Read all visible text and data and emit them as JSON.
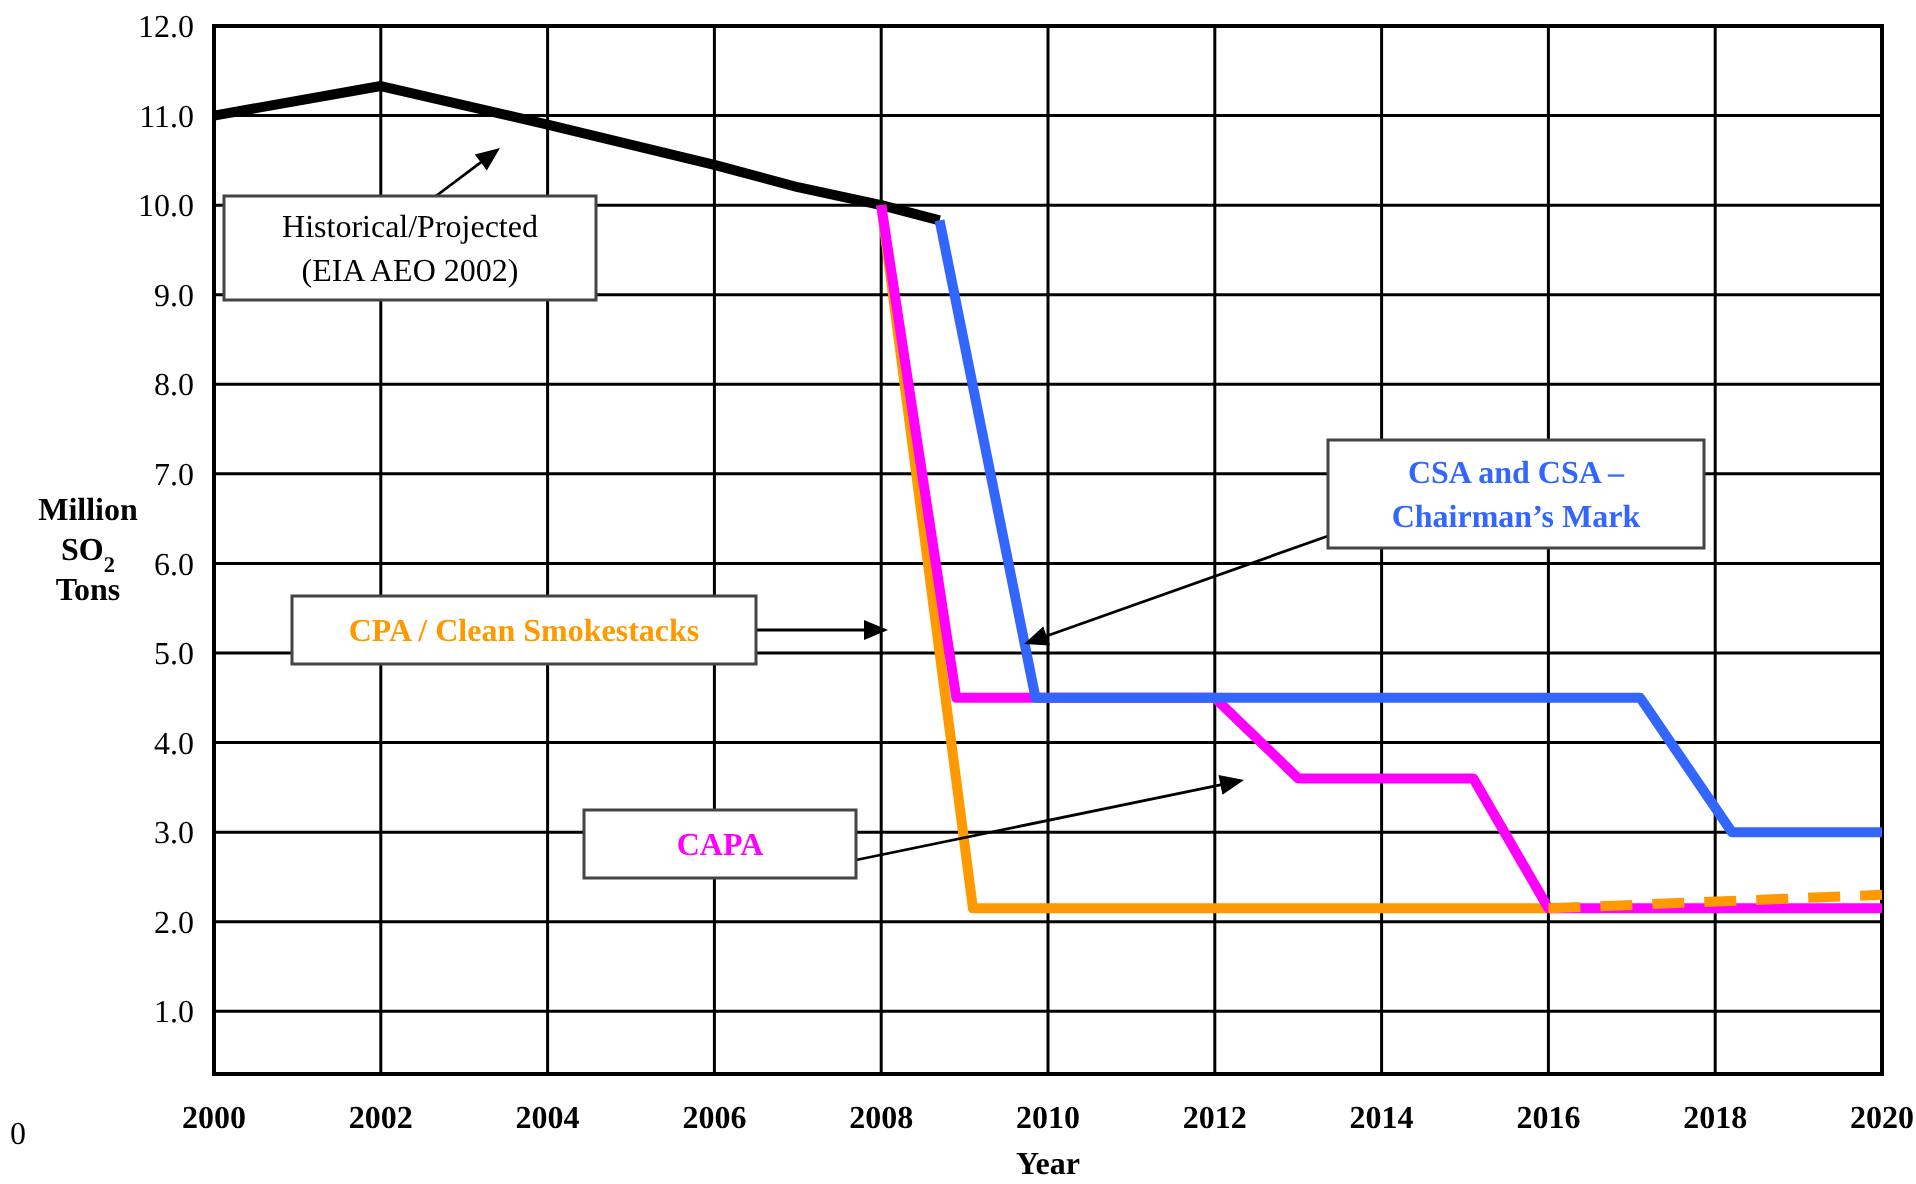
{
  "chart_data": {
    "type": "line",
    "xlabel": "Year",
    "ylabel": "Million SO$_{2}$ Tons",
    "xlim": [
      2000,
      2020
    ],
    "ylim": [
      0.3,
      12
    ],
    "xticks": [
      2000,
      2002,
      2004,
      2006,
      2008,
      2010,
      2012,
      2014,
      2016,
      2018,
      2020
    ],
    "yticks": [
      {
        "value": 1,
        "label": "1.0"
      },
      {
        "value": 2,
        "label": "2.0"
      },
      {
        "value": 3,
        "label": "3.0"
      },
      {
        "value": 4,
        "label": "4.0"
      },
      {
        "value": 5,
        "label": "5.0"
      },
      {
        "value": 6,
        "label": "6.0"
      },
      {
        "value": 7,
        "label": "7.0"
      },
      {
        "value": 8,
        "label": "8.0"
      },
      {
        "value": 9,
        "label": "9.0"
      },
      {
        "value": 10,
        "label": "10.0"
      },
      {
        "value": 11,
        "label": "11.0"
      },
      {
        "value": 12,
        "label": "12.0"
      }
    ],
    "grid": true,
    "marker": "none",
    "annotations": [
      "Historical/Projected\n(EIA AEO 2002)",
      "CPA / Clean Smokestacks",
      "CAPA",
      "CSA and CSA –\nChairman’s Mark",
      "0"
    ],
    "series": [
      {
        "color": "#000000",
        "x": [
          2000,
          2002,
          2004,
          2006,
          2007,
          2008,
          2008.7
        ],
        "values": [
          11.0,
          11.33,
          10.9,
          10.45,
          10.2,
          10.0,
          9.83
        ]
      },
      {
        "color": "#ff9900",
        "x": [
          2008,
          2009.1,
          2016
        ],
        "values": [
          10.0,
          2.15,
          2.15
        ]
      },
      {
        "color": "#ff00ff",
        "x": [
          2008,
          2008.9,
          2012,
          2013,
          2015.1,
          2016,
          2020
        ],
        "values": [
          10.0,
          4.5,
          4.5,
          3.6,
          3.6,
          2.15,
          2.15
        ]
      },
      {
        "color": "#3366ff",
        "x": [
          2008.7,
          2009.85,
          2017.1,
          2018.2,
          2020
        ],
        "values": [
          9.83,
          4.5,
          4.5,
          3.0,
          3.0
        ]
      },
      {
        "color": "#ff9900",
        "line_style": "dashed",
        "x": [
          2016,
          2020
        ],
        "values": [
          2.15,
          2.3
        ]
      }
    ]
  }
}
